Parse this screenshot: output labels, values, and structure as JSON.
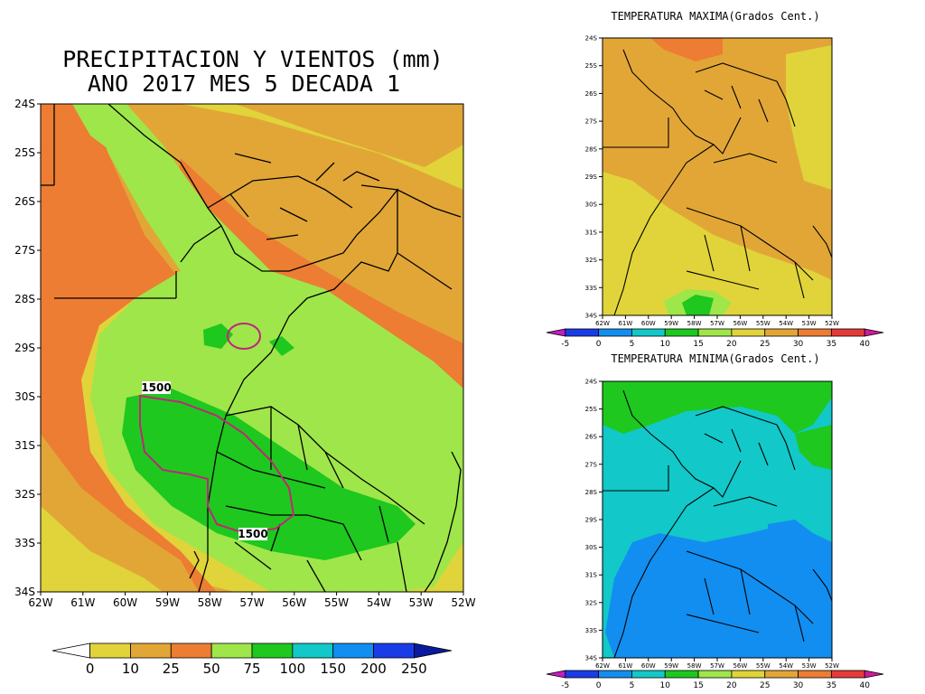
{
  "main": {
    "title_line1": "PRECIPITACION Y VIENTOS (mm)",
    "title_line2": "ANO 2017 MES 5 DECADA 1",
    "contour_labels": [
      "1500",
      "1500"
    ],
    "lat_ticks": [
      "24S",
      "25S",
      "26S",
      "27S",
      "28S",
      "29S",
      "30S",
      "31S",
      "32S",
      "33S",
      "34S"
    ],
    "lon_ticks": [
      "62W",
      "61W",
      "60W",
      "59W",
      "58W",
      "57W",
      "56W",
      "55W",
      "54W",
      "53W",
      "52W"
    ],
    "colorbar": {
      "labels": [
        "0",
        "10",
        "25",
        "50",
        "75",
        "100",
        "150",
        "200",
        "250"
      ],
      "colors": [
        "#ffffff",
        "#e0d43a",
        "#e2a637",
        "#ec7d33",
        "#9fe64a",
        "#1ec81e",
        "#12c8c8",
        "#128ef0",
        "#1a3ce6",
        "#0a1a9c"
      ]
    }
  },
  "tmax": {
    "title": "TEMPERATURA MAXIMA(Grados Cent.)",
    "lat_ticks": [
      "24S",
      "25S",
      "26S",
      "27S",
      "28S",
      "29S",
      "30S",
      "31S",
      "32S",
      "33S",
      "34S"
    ],
    "lon_ticks": [
      "62W",
      "61W",
      "60W",
      "59W",
      "58W",
      "57W",
      "56W",
      "55W",
      "54W",
      "53W",
      "52W"
    ],
    "colorbar": {
      "labels": [
        "-5",
        "0",
        "5",
        "10",
        "15",
        "20",
        "25",
        "30",
        "35",
        "40"
      ]
    }
  },
  "tmin": {
    "title": "TEMPERATURA MINIMA(Grados Cent.)",
    "lat_ticks": [
      "24S",
      "25S",
      "26S",
      "27S",
      "28S",
      "29S",
      "30S",
      "31S",
      "32S",
      "33S",
      "34S"
    ],
    "lon_ticks": [
      "62W",
      "61W",
      "60W",
      "59W",
      "58W",
      "57W",
      "56W",
      "55W",
      "54W",
      "53W",
      "52W"
    ],
    "colorbar": {
      "labels": [
        "-5",
        "0",
        "5",
        "10",
        "15",
        "20",
        "25",
        "30",
        "35",
        "40"
      ]
    }
  },
  "temp_colorbar_colors": [
    "#c21ec2",
    "#1a3ce6",
    "#128ef0",
    "#12c8c8",
    "#1ec81e",
    "#9fe64a",
    "#e0d43a",
    "#e2a637",
    "#ec7d33",
    "#e63a3a",
    "#d01a9c"
  ]
}
